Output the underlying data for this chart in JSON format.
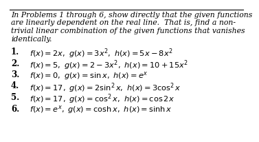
{
  "bg_color": "#ffffff",
  "text_color": "#000000",
  "header_lines": [
    "In Problems 1 through 6, show directly that the given functions",
    "are linearly dependent on the real line.  That is, find a non-",
    "trivial linear combination of the given functions that vanishes",
    "identically."
  ],
  "header_fontsize": 7.8,
  "item_fontsize": 8.2,
  "num_fontsize": 8.5,
  "nums": [
    "1.",
    "2.",
    "3.",
    "4.",
    "5.",
    "6."
  ],
  "item_texts": [
    "$f(x) = 2x,\\ g(x) = 3x^2,\\ h(x) = 5x - 8x^2$",
    "$f(x) = 5,\\ g(x) = 2 - 3x^2,\\ h(x) = 10 + 15x^2$",
    "$f(x) = 0,\\ g(x) = \\sin x,\\ h(x) = e^x$",
    "$f(x) = 17,\\ g(x) = 2\\sin^2 x,\\ h(x) = 3\\cos^2 x$",
    "$f(x) = 17,\\ g(x) = \\cos^2 x,\\ h(x) = \\cos 2x$",
    "$f(x) = e^x,\\ g(x) = \\cosh x,\\ h(x) = \\sinh x$"
  ]
}
